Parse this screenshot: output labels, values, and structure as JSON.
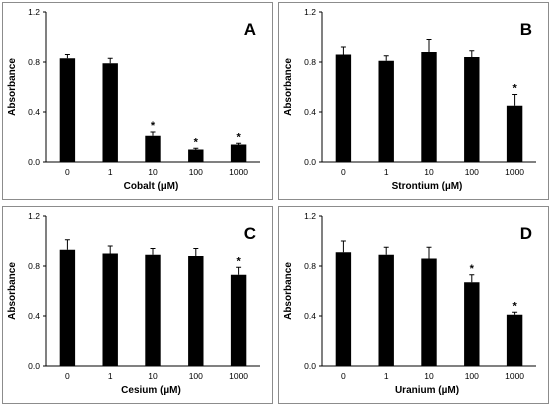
{
  "colors": {
    "bar": "#000000",
    "frame": "#8c8c8c",
    "axis": "#000000"
  },
  "chart_data": [
    {
      "panel": "A",
      "type": "bar",
      "categories": [
        "0",
        "1",
        "10",
        "100",
        "1000"
      ],
      "values": [
        0.83,
        0.79,
        0.21,
        0.1,
        0.14
      ],
      "errors": [
        0.03,
        0.04,
        0.03,
        0.01,
        0.01
      ],
      "significant": [
        false,
        false,
        true,
        true,
        true
      ],
      "xlabel": "Cobalt (µM)",
      "ylabel": "Absorbance",
      "ylim": [
        0,
        1.2
      ],
      "yticks": [
        "0.0",
        "0.4",
        "0.8",
        "1.2"
      ],
      "marker": "*"
    },
    {
      "panel": "B",
      "type": "bar",
      "categories": [
        "0",
        "1",
        "10",
        "100",
        "1000"
      ],
      "values": [
        0.86,
        0.81,
        0.88,
        0.84,
        0.45
      ],
      "errors": [
        0.06,
        0.04,
        0.1,
        0.05,
        0.09
      ],
      "significant": [
        false,
        false,
        false,
        false,
        true
      ],
      "xlabel": "Strontium (µM)",
      "ylabel": "Absorbance",
      "ylim": [
        0,
        1.2
      ],
      "yticks": [
        "0.0",
        "0.4",
        "0.8",
        "1.2"
      ],
      "marker": "*"
    },
    {
      "panel": "C",
      "type": "bar",
      "categories": [
        "0",
        "1",
        "10",
        "100",
        "1000"
      ],
      "values": [
        0.93,
        0.9,
        0.89,
        0.88,
        0.73
      ],
      "errors": [
        0.08,
        0.06,
        0.05,
        0.06,
        0.06
      ],
      "significant": [
        false,
        false,
        false,
        false,
        true
      ],
      "xlabel": "Cesium (µM)",
      "ylabel": "Absorbance",
      "ylim": [
        0,
        1.2
      ],
      "yticks": [
        "0.0",
        "0.4",
        "0.8",
        "1.2"
      ],
      "marker": "*"
    },
    {
      "panel": "D",
      "type": "bar",
      "categories": [
        "0",
        "1",
        "10",
        "100",
        "1000"
      ],
      "values": [
        0.91,
        0.89,
        0.86,
        0.67,
        0.41
      ],
      "errors": [
        0.09,
        0.06,
        0.09,
        0.06,
        0.02
      ],
      "significant": [
        false,
        false,
        false,
        true,
        true
      ],
      "xlabel": "Uranium (µM)",
      "ylabel": "Absorbance",
      "ylim": [
        0,
        1.2
      ],
      "yticks": [
        "0.0",
        "0.4",
        "0.8",
        "1.2"
      ],
      "marker": "*"
    }
  ]
}
